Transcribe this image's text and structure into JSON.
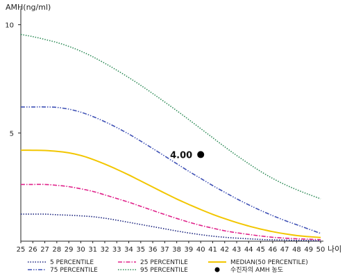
{
  "chart_data": {
    "type": "line",
    "ylabel": "AMH(ng/ml)",
    "xlabel": "나이",
    "x": [
      25,
      26,
      27,
      28,
      29,
      30,
      31,
      32,
      33,
      34,
      35,
      36,
      37,
      38,
      39,
      40,
      41,
      42,
      43,
      44,
      45,
      46,
      47,
      48,
      49,
      50
    ],
    "x_tick_labels": [
      "25",
      "26",
      "27",
      "28",
      "29",
      "30",
      "31",
      "32",
      "33",
      "34",
      "35",
      "36",
      "37",
      "38",
      "39",
      "40",
      "41",
      "42",
      "43",
      "44",
      "45",
      "46",
      "47",
      "48",
      "49",
      "50"
    ],
    "xlim": [
      25,
      50
    ],
    "ylim": [
      0,
      10.5
    ],
    "y_ticks": [
      5,
      10
    ],
    "y_tick_labels": [
      "5",
      "10"
    ],
    "grid": false,
    "legend_position": "bottom",
    "series": [
      {
        "name": "5 PERCENTILE",
        "color": "#1a237e",
        "dash": "dotted",
        "values": [
          1.25,
          1.25,
          1.25,
          1.22,
          1.2,
          1.17,
          1.13,
          1.06,
          0.97,
          0.87,
          0.77,
          0.67,
          0.57,
          0.47,
          0.38,
          0.3,
          0.23,
          0.18,
          0.14,
          0.11,
          0.08,
          0.06,
          0.05,
          0.04,
          0.03,
          0.02
        ]
      },
      {
        "name": "25 PERCENTILE",
        "color": "#e0218a",
        "dash": "dashdot",
        "values": [
          2.62,
          2.62,
          2.62,
          2.58,
          2.52,
          2.42,
          2.3,
          2.14,
          1.97,
          1.8,
          1.61,
          1.42,
          1.23,
          1.05,
          0.88,
          0.73,
          0.6,
          0.48,
          0.39,
          0.31,
          0.24,
          0.18,
          0.14,
          0.11,
          0.09,
          0.07
        ]
      },
      {
        "name": "MEDIAN(50 PERCENTILE)",
        "color": "#f2c600",
        "dash": "solid",
        "values": [
          4.2,
          4.2,
          4.19,
          4.15,
          4.08,
          3.96,
          3.78,
          3.56,
          3.32,
          3.06,
          2.78,
          2.5,
          2.22,
          1.95,
          1.7,
          1.46,
          1.24,
          1.04,
          0.86,
          0.7,
          0.56,
          0.44,
          0.34,
          0.26,
          0.21,
          0.17
        ]
      },
      {
        "name": "75 PERCENTILE",
        "color": "#3f51b5",
        "dash": "dashdotdot",
        "values": [
          6.2,
          6.2,
          6.2,
          6.18,
          6.1,
          5.96,
          5.76,
          5.52,
          5.25,
          4.95,
          4.62,
          4.28,
          3.93,
          3.58,
          3.23,
          2.9,
          2.57,
          2.26,
          1.96,
          1.68,
          1.42,
          1.18,
          0.96,
          0.76,
          0.56,
          0.36
        ]
      },
      {
        "name": "95 PERCENTILE",
        "color": "#2e8b57",
        "dash": "dotted",
        "values": [
          9.55,
          9.45,
          9.32,
          9.18,
          9.0,
          8.78,
          8.52,
          8.22,
          7.9,
          7.56,
          7.2,
          6.82,
          6.43,
          6.03,
          5.62,
          5.2,
          4.78,
          4.36,
          3.96,
          3.58,
          3.22,
          2.9,
          2.62,
          2.38,
          2.16,
          1.96
        ]
      }
    ],
    "marker": {
      "name": "수진자의 AMH 농도",
      "x": 40,
      "y": 4.0,
      "label": "4.00",
      "color": "#000000"
    }
  }
}
